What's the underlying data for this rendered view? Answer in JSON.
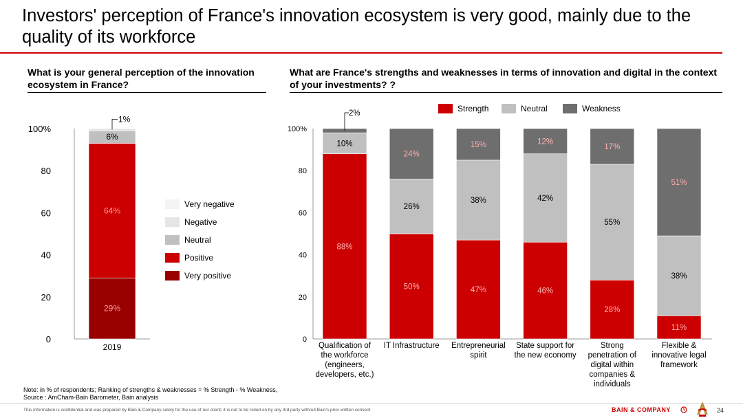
{
  "title": "Investors' perception of France's innovation ecosystem is very good, mainly due to the quality of its workforce",
  "left_question": "What is your general perception of the innovation ecosystem in France?",
  "right_question": "What are France's strengths and weaknesses in terms of innovation and digital in the context of your investments? ?",
  "colors": {
    "very_positive": "#990000",
    "positive": "#cc0000",
    "neutral": "#c0c0c0",
    "negative": "#e6e6e6",
    "very_negative": "#f4f4f4",
    "strength": "#cc0000",
    "weakness": "#6e6e6e",
    "accent": "#cc0000"
  },
  "chart_data": [
    {
      "type": "bar",
      "stacked": true,
      "categories": [
        "2019"
      ],
      "yticks": [
        "0",
        "20",
        "40",
        "60",
        "80",
        "100%"
      ],
      "ylim": [
        0,
        100
      ],
      "series": [
        {
          "name": "Very positive",
          "values": [
            29
          ],
          "labels": [
            "29%"
          ]
        },
        {
          "name": "Positive",
          "values": [
            64
          ],
          "labels": [
            "64%"
          ]
        },
        {
          "name": "Neutral",
          "values": [
            6
          ],
          "labels": [
            "6%"
          ]
        },
        {
          "name": "Negative",
          "values": [
            1
          ],
          "labels": [
            "1%"
          ]
        },
        {
          "name": "Very negative",
          "values": [
            0
          ],
          "labels": [
            ""
          ]
        }
      ],
      "legend": [
        "Very negative",
        "Negative",
        "Neutral",
        "Positive",
        "Very positive"
      ],
      "legend_position": "right"
    },
    {
      "type": "bar",
      "stacked": true,
      "categories": [
        "Qualification of the workforce (engineers, developers, etc.)",
        "IT Infrastructure",
        "Entrepreneurial spirit",
        "State support for the new economy",
        "Strong penetration of digital within companies & individuals",
        "Flexible & innovative legal framework"
      ],
      "category_lines": [
        [
          "Qualification of",
          "the workforce",
          "(engineers,",
          "developers, etc.)"
        ],
        [
          "IT Infrastructure"
        ],
        [
          "Entrepreneurial",
          "spirit"
        ],
        [
          "State support for",
          "the new economy"
        ],
        [
          "Strong",
          "penetration of",
          "digital within",
          "companies &",
          "individuals"
        ],
        [
          "Flexible &",
          "innovative legal",
          "framework"
        ]
      ],
      "yticks": [
        "0",
        "20",
        "40",
        "60",
        "80",
        "100%"
      ],
      "ylim": [
        0,
        100
      ],
      "series": [
        {
          "name": "Strength",
          "values": [
            88,
            50,
            47,
            46,
            28,
            11
          ],
          "labels": [
            "88%",
            "50%",
            "47%",
            "46%",
            "28%",
            "11%"
          ]
        },
        {
          "name": "Neutral",
          "values": [
            10,
            26,
            38,
            42,
            55,
            38
          ],
          "labels": [
            "10%",
            "26%",
            "38%",
            "42%",
            "55%",
            "38%"
          ]
        },
        {
          "name": "Weakness",
          "values": [
            2,
            24,
            15,
            12,
            17,
            51
          ],
          "labels": [
            "2%",
            "24%",
            "15%",
            "12%",
            "17%",
            "51%"
          ]
        }
      ],
      "legend": [
        "Strength",
        "Neutral",
        "Weakness"
      ],
      "legend_position": "top"
    }
  ],
  "note": "Note: in % of respondents; Ranking of strengths & weaknesses = % Strength - % Weakness,",
  "source": "Source : AmCham-Bain Barometer, Bain analysis",
  "disclaimer": "This information is confidential and was prepared by Bain & Company solely for the use of our client; it is not to be relied on by any 3rd party without Bain's prior written consent",
  "brand": "BAIN & COMPANY",
  "page_number": "24"
}
